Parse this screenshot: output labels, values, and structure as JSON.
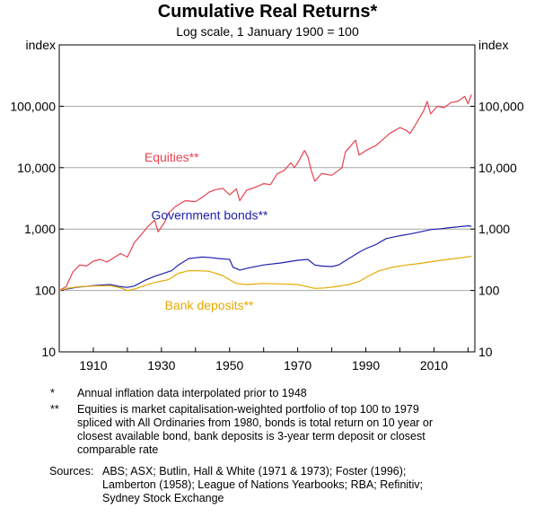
{
  "title": "Cumulative Real Returns*",
  "subtitle": "Log scale, 1 January 1900 = 100",
  "chart_data": {
    "type": "line",
    "y_scale": "log",
    "ylim": [
      10,
      1000000
    ],
    "xlim": [
      1900,
      2022
    ],
    "yticks": [
      10,
      100,
      1000,
      10000,
      100000
    ],
    "ytick_labels": [
      "10",
      "100",
      "1,000",
      "10,000",
      "100,000"
    ],
    "xticks": [
      1910,
      1930,
      1950,
      1970,
      1990,
      2010
    ],
    "ytitle_left": "index",
    "ytitle_right": "index",
    "grid": true,
    "series": [
      {
        "name": "Equities**",
        "color": "#e8424f",
        "x": [
          1900,
          1902,
          1904,
          1906,
          1908,
          1910,
          1912,
          1914,
          1916,
          1918,
          1920,
          1921,
          1922,
          1924,
          1926,
          1928,
          1929,
          1931,
          1932,
          1934,
          1936,
          1937,
          1940,
          1942,
          1944,
          1946,
          1948,
          1950,
          1952,
          1953,
          1955,
          1958,
          1960,
          1962,
          1964,
          1966,
          1968,
          1969,
          1970,
          1972,
          1973,
          1974,
          1975,
          1977,
          1980,
          1983,
          1984,
          1987,
          1988,
          1990,
          1993,
          1997,
          2000,
          2002,
          2003,
          2005,
          2007,
          2008,
          2009,
          2011,
          2013,
          2015,
          2017,
          2019,
          2020,
          2021
        ],
        "y": [
          100,
          115,
          200,
          260,
          250,
          300,
          320,
          290,
          340,
          400,
          350,
          450,
          600,
          800,
          1100,
          1400,
          900,
          1300,
          1800,
          2300,
          2700,
          2900,
          2800,
          3300,
          4000,
          4400,
          4600,
          3600,
          4500,
          2900,
          4300,
          4900,
          5500,
          5300,
          8000,
          9000,
          12000,
          10000,
          12000,
          19000,
          15000,
          9000,
          6000,
          8000,
          7500,
          10000,
          18000,
          28000,
          16000,
          19000,
          23000,
          36000,
          45000,
          40000,
          36000,
          55000,
          85000,
          120000,
          75000,
          100000,
          95000,
          115000,
          120000,
          145000,
          110000,
          155000
        ]
      },
      {
        "name": "Government bonds**",
        "color": "#1e22aa",
        "x": [
          1900,
          1902,
          1905,
          1910,
          1915,
          1918,
          1920,
          1922,
          1925,
          1928,
          1930,
          1933,
          1935,
          1938,
          1940,
          1942,
          1944,
          1947,
          1950,
          1951,
          1953,
          1956,
          1960,
          1965,
          1970,
          1973,
          1975,
          1977,
          1980,
          1982,
          1985,
          1988,
          1990,
          1993,
          1996,
          2000,
          2003,
          2006,
          2009,
          2012,
          2015,
          2018,
          2020,
          2021
        ],
        "y": [
          100,
          105,
          112,
          120,
          125,
          115,
          112,
          118,
          145,
          170,
          185,
          210,
          260,
          330,
          340,
          350,
          345,
          330,
          320,
          240,
          215,
          235,
          260,
          280,
          310,
          320,
          260,
          250,
          245,
          260,
          330,
          420,
          480,
          560,
          700,
          780,
          830,
          900,
          980,
          1010,
          1060,
          1100,
          1130,
          1110
        ]
      },
      {
        "name": "Bank deposits**",
        "color": "#e7a900",
        "x": [
          1900,
          1903,
          1906,
          1910,
          1915,
          1918,
          1920,
          1922,
          1925,
          1928,
          1932,
          1935,
          1938,
          1941,
          1944,
          1948,
          1950,
          1952,
          1955,
          1960,
          1965,
          1970,
          1972,
          1975,
          1978,
          1981,
          1985,
          1988,
          1991,
          1994,
          1998,
          2002,
          2006,
          2010,
          2014,
          2018,
          2021
        ],
        "y": [
          100,
          110,
          115,
          118,
          120,
          110,
          100,
          105,
          120,
          135,
          150,
          190,
          210,
          210,
          205,
          175,
          150,
          130,
          125,
          130,
          128,
          125,
          118,
          108,
          110,
          115,
          125,
          140,
          175,
          210,
          240,
          260,
          275,
          300,
          320,
          340,
          360
        ]
      }
    ]
  },
  "notes": [
    {
      "mark": "*",
      "text": "Annual inflation data interpolated prior to 1948"
    },
    {
      "mark": "**",
      "text": "Equities is market capitalisation-weighted portfolio of top 100 to 1979 spliced with All Ordinaries from 1980, bonds is total return on 10 year or closest available bond, bank deposits is 3-year term deposit or closest comparable rate"
    }
  ],
  "sources": {
    "label": "Sources:",
    "text": "ABS; ASX; Butlin, Hall & White (1971 & 1973); Foster (1996); Lamberton (1958); League of Nations Yearbooks; RBA; Refinitiv; Sydney Stock Exchange"
  }
}
